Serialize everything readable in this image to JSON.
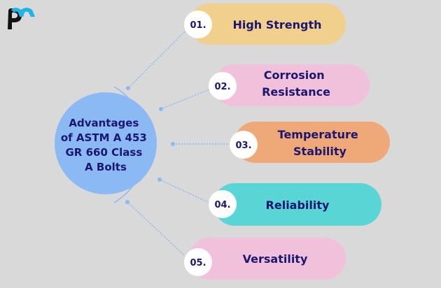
{
  "logo": {
    "text": "pm",
    "colors": {
      "p": "#111111",
      "m": "#1eb4e8"
    }
  },
  "center": {
    "lines": [
      "Advantages",
      "of ASTM A 453",
      "GR 660 Class",
      "A Bolts"
    ],
    "color": "#8bb9f4"
  },
  "items": [
    {
      "number": "01.",
      "lines": [
        "High Strength"
      ],
      "color": "#f1d08e"
    },
    {
      "number": "02.",
      "lines": [
        "Corrosion",
        "Resistance"
      ],
      "color": "#f1c1dc"
    },
    {
      "number": "03.",
      "lines": [
        "Temperature",
        "Stability"
      ],
      "color": "#efa877"
    },
    {
      "number": "04.",
      "lines": [
        "Reliability"
      ],
      "color": "#5ad5d6"
    },
    {
      "number": "05.",
      "lines": [
        "Versatility"
      ],
      "color": "#f1c1dc"
    }
  ],
  "text_color": "#1b1670",
  "connector_color": "#8bb9f4"
}
